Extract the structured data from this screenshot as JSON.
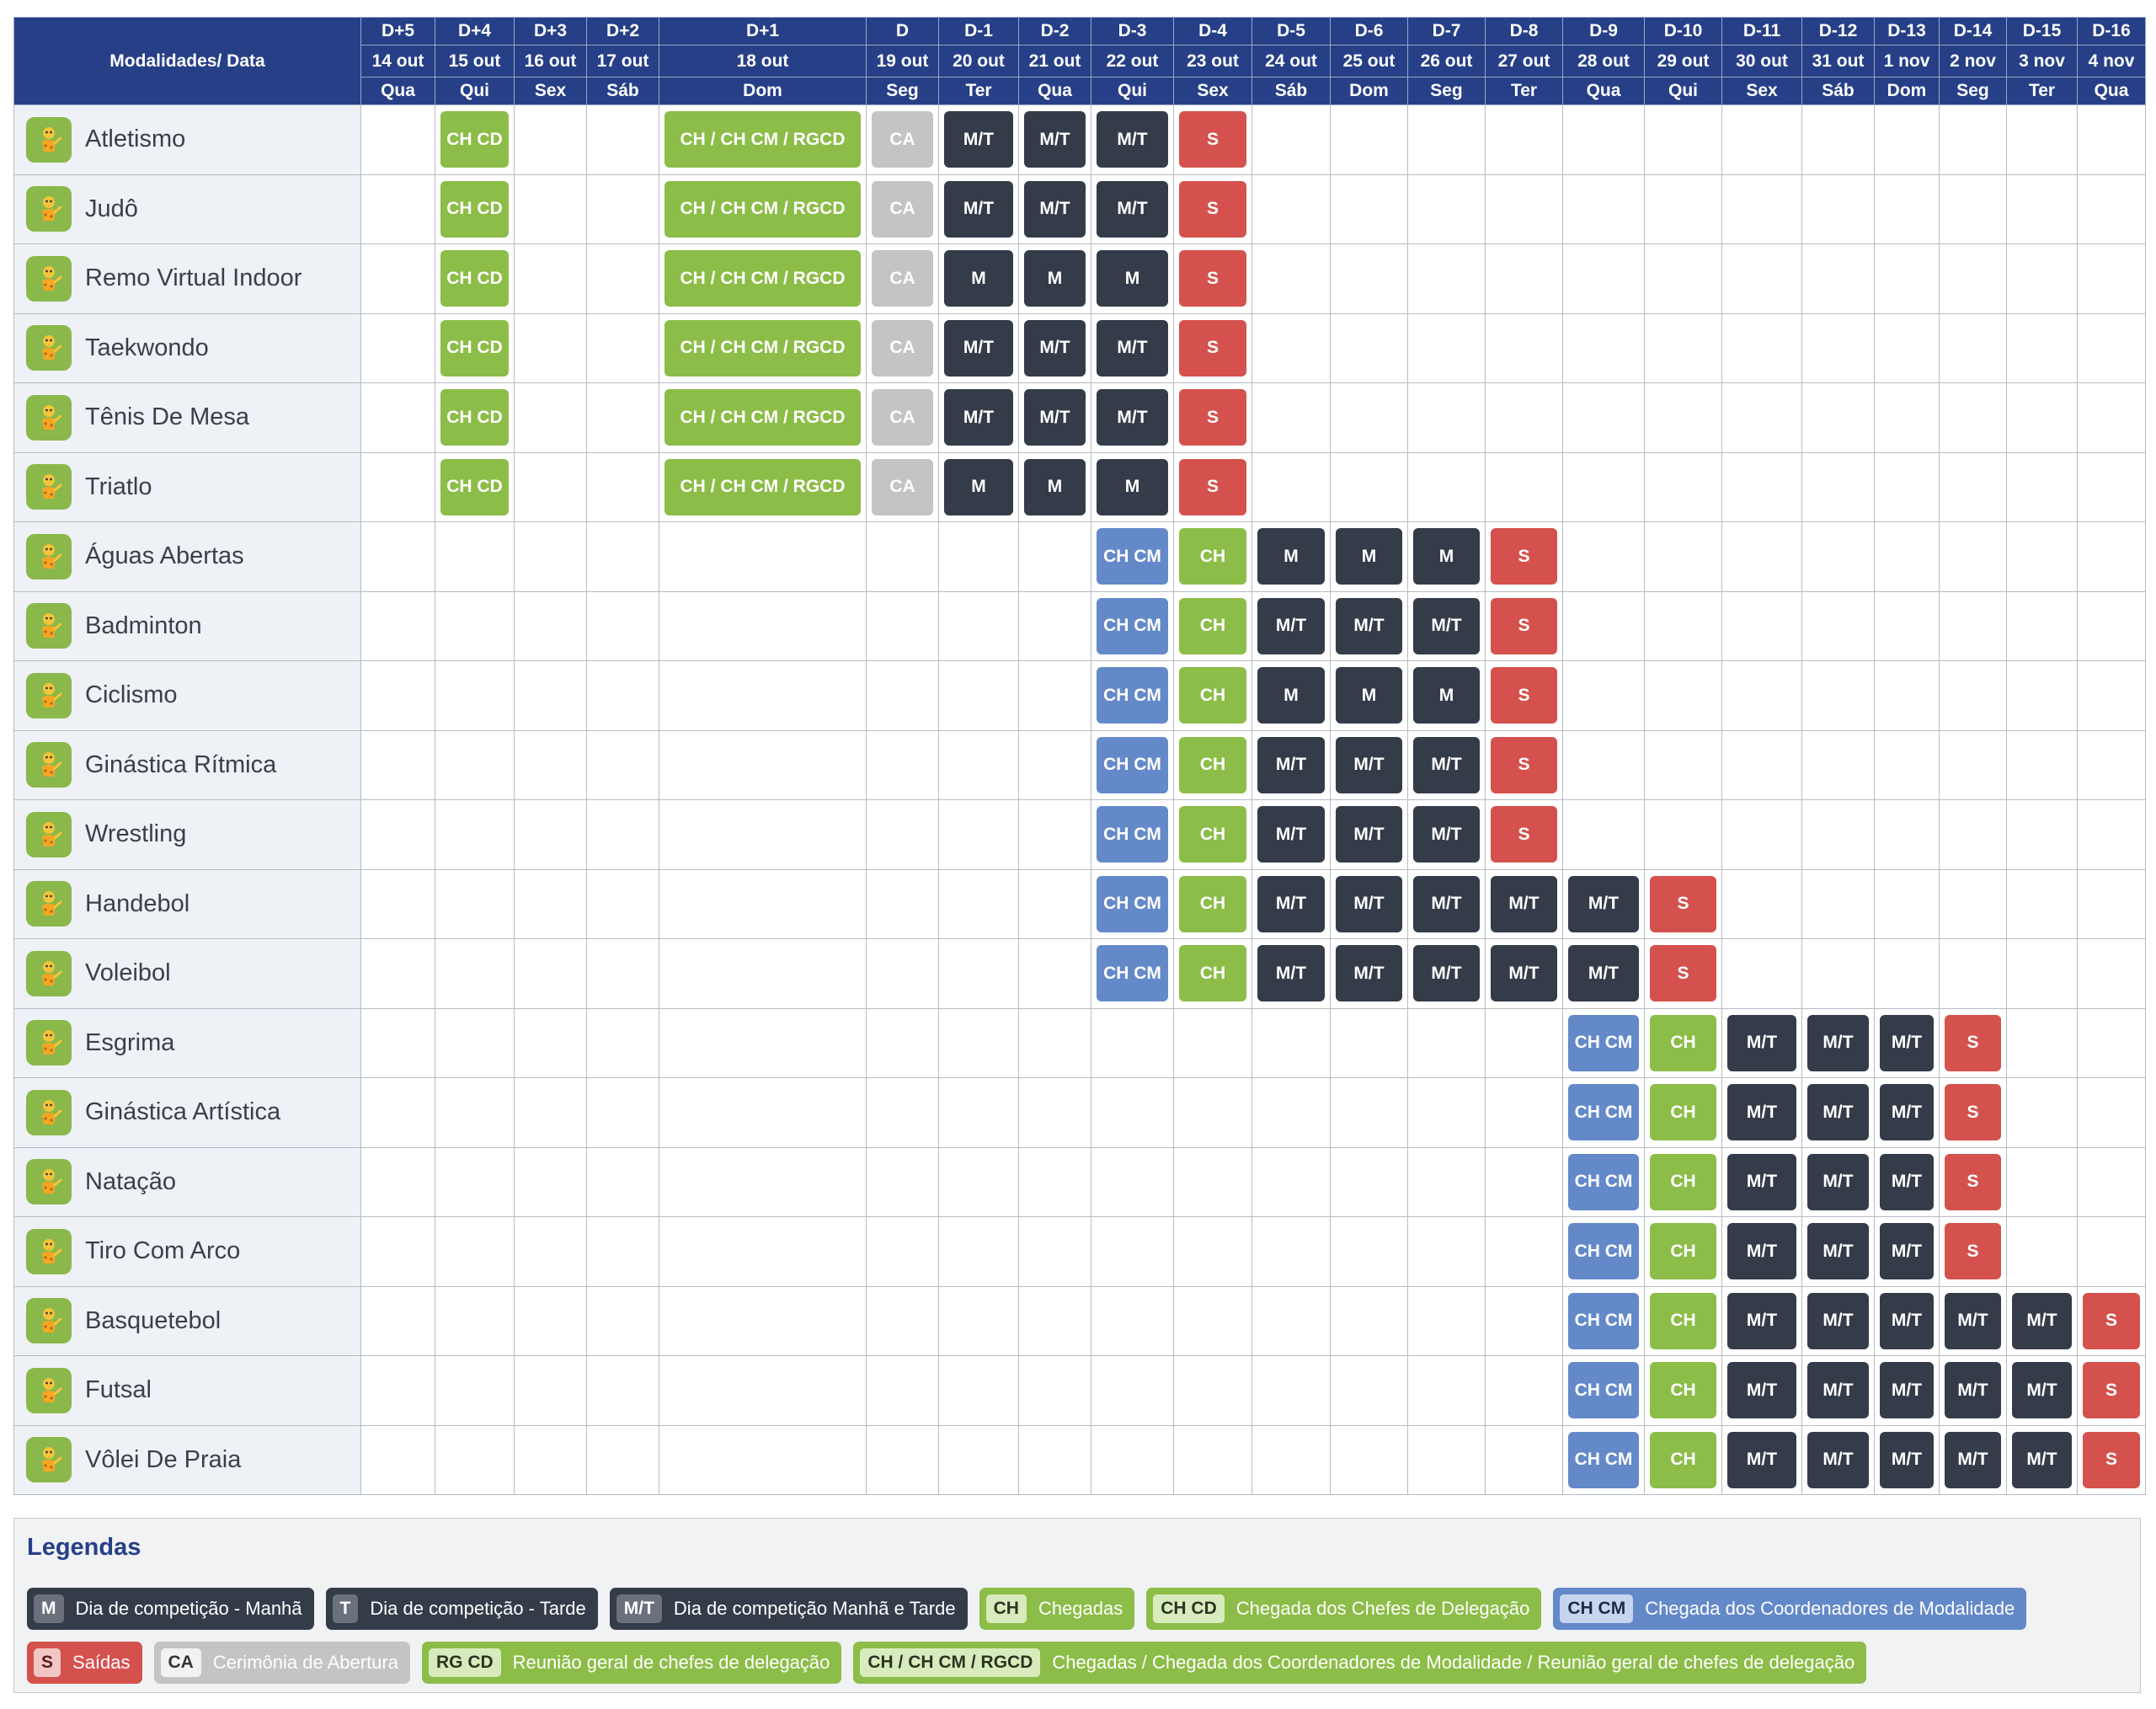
{
  "header": {
    "corner_label": "Modalidades/ Data",
    "columns": [
      {
        "d": "D+5",
        "date": "14 out",
        "wd": "Qua"
      },
      {
        "d": "D+4",
        "date": "15 out",
        "wd": "Qui"
      },
      {
        "d": "D+3",
        "date": "16 out",
        "wd": "Sex"
      },
      {
        "d": "D+2",
        "date": "17 out",
        "wd": "Sáb"
      },
      {
        "d": "D+1",
        "date": "18 out",
        "wd": "Dom"
      },
      {
        "d": "D",
        "date": "19 out",
        "wd": "Seg"
      },
      {
        "d": "D-1",
        "date": "20 out",
        "wd": "Ter"
      },
      {
        "d": "D-2",
        "date": "21 out",
        "wd": "Qua"
      },
      {
        "d": "D-3",
        "date": "22 out",
        "wd": "Qui"
      },
      {
        "d": "D-4",
        "date": "23 out",
        "wd": "Sex"
      },
      {
        "d": "D-5",
        "date": "24 out",
        "wd": "Sáb"
      },
      {
        "d": "D-6",
        "date": "25 out",
        "wd": "Dom"
      },
      {
        "d": "D-7",
        "date": "26 out",
        "wd": "Seg"
      },
      {
        "d": "D-8",
        "date": "27 out",
        "wd": "Ter"
      },
      {
        "d": "D-9",
        "date": "28 out",
        "wd": "Qua"
      },
      {
        "d": "D-10",
        "date": "29 out",
        "wd": "Qui"
      },
      {
        "d": "D-11",
        "date": "30 out",
        "wd": "Sex"
      },
      {
        "d": "D-12",
        "date": "31 out",
        "wd": "Sáb"
      },
      {
        "d": "D-13",
        "date": "1 nov",
        "wd": "Dom"
      },
      {
        "d": "D-14",
        "date": "2 nov",
        "wd": "Seg"
      },
      {
        "d": "D-15",
        "date": "3 nov",
        "wd": "Ter"
      },
      {
        "d": "D-16",
        "date": "4 nov",
        "wd": "Qua"
      }
    ]
  },
  "colors": {
    "header_bg": "#263f87",
    "green": "#8cbd48",
    "gray": "#c3c4c6",
    "dark": "#343c4a",
    "red": "#d5514d",
    "blue": "#6389c9"
  },
  "sports": [
    {
      "name": "Atletismo",
      "icon": "athletics-mascot-icon",
      "cells": [
        "",
        "CH CD",
        "",
        "",
        "CH / CH CM / RGCD",
        "CA",
        "M/T",
        "M/T",
        "M/T",
        "S",
        "",
        "",
        "",
        "",
        "",
        "",
        "",
        "",
        "",
        "",
        "",
        ""
      ]
    },
    {
      "name": "Judô",
      "icon": "judo-mascot-icon",
      "cells": [
        "",
        "CH CD",
        "",
        "",
        "CH / CH CM / RGCD",
        "CA",
        "M/T",
        "M/T",
        "M/T",
        "S",
        "",
        "",
        "",
        "",
        "",
        "",
        "",
        "",
        "",
        "",
        "",
        ""
      ]
    },
    {
      "name": "Remo Virtual Indoor",
      "icon": "rowing-mascot-icon",
      "cells": [
        "",
        "CH CD",
        "",
        "",
        "CH / CH CM / RGCD",
        "CA",
        "M",
        "M",
        "M",
        "S",
        "",
        "",
        "",
        "",
        "",
        "",
        "",
        "",
        "",
        "",
        "",
        ""
      ]
    },
    {
      "name": "Taekwondo",
      "icon": "taekwondo-mascot-icon",
      "cells": [
        "",
        "CH CD",
        "",
        "",
        "CH / CH CM / RGCD",
        "CA",
        "M/T",
        "M/T",
        "M/T",
        "S",
        "",
        "",
        "",
        "",
        "",
        "",
        "",
        "",
        "",
        "",
        "",
        ""
      ]
    },
    {
      "name": "Tênis De Mesa",
      "icon": "table-tennis-mascot-icon",
      "cells": [
        "",
        "CH CD",
        "",
        "",
        "CH / CH CM / RGCD",
        "CA",
        "M/T",
        "M/T",
        "M/T",
        "S",
        "",
        "",
        "",
        "",
        "",
        "",
        "",
        "",
        "",
        "",
        "",
        ""
      ]
    },
    {
      "name": "Triatlo",
      "icon": "triathlon-mascot-icon",
      "cells": [
        "",
        "CH CD",
        "",
        "",
        "CH / CH CM / RGCD",
        "CA",
        "M",
        "M",
        "M",
        "S",
        "",
        "",
        "",
        "",
        "",
        "",
        "",
        "",
        "",
        "",
        "",
        ""
      ]
    },
    {
      "name": "Águas Abertas",
      "icon": "open-water-mascot-icon",
      "cells": [
        "",
        "",
        "",
        "",
        "",
        "",
        "",
        "",
        "CH CM",
        "CH",
        "M",
        "M",
        "M",
        "S",
        "",
        "",
        "",
        "",
        "",
        "",
        "",
        ""
      ]
    },
    {
      "name": "Badminton",
      "icon": "badminton-mascot-icon",
      "cells": [
        "",
        "",
        "",
        "",
        "",
        "",
        "",
        "",
        "CH CM",
        "CH",
        "M/T",
        "M/T",
        "M/T",
        "S",
        "",
        "",
        "",
        "",
        "",
        "",
        "",
        ""
      ]
    },
    {
      "name": "Ciclismo",
      "icon": "cycling-mascot-icon",
      "cells": [
        "",
        "",
        "",
        "",
        "",
        "",
        "",
        "",
        "CH CM",
        "CH",
        "M",
        "M",
        "M",
        "S",
        "",
        "",
        "",
        "",
        "",
        "",
        "",
        ""
      ]
    },
    {
      "name": "Ginástica Rítmica",
      "icon": "rhythmic-gymnastics-mascot-icon",
      "cells": [
        "",
        "",
        "",
        "",
        "",
        "",
        "",
        "",
        "CH CM",
        "CH",
        "M/T",
        "M/T",
        "M/T",
        "S",
        "",
        "",
        "",
        "",
        "",
        "",
        "",
        ""
      ]
    },
    {
      "name": "Wrestling",
      "icon": "wrestling-mascot-icon",
      "cells": [
        "",
        "",
        "",
        "",
        "",
        "",
        "",
        "",
        "CH CM",
        "CH",
        "M/T",
        "M/T",
        "M/T",
        "S",
        "",
        "",
        "",
        "",
        "",
        "",
        "",
        ""
      ]
    },
    {
      "name": "Handebol",
      "icon": "handball-mascot-icon",
      "cells": [
        "",
        "",
        "",
        "",
        "",
        "",
        "",
        "",
        "CH CM",
        "CH",
        "M/T",
        "M/T",
        "M/T",
        "M/T",
        "M/T",
        "S",
        "",
        "",
        "",
        "",
        "",
        ""
      ]
    },
    {
      "name": "Voleibol",
      "icon": "volleyball-mascot-icon",
      "cells": [
        "",
        "",
        "",
        "",
        "",
        "",
        "",
        "",
        "CH CM",
        "CH",
        "M/T",
        "M/T",
        "M/T",
        "M/T",
        "M/T",
        "S",
        "",
        "",
        "",
        "",
        "",
        ""
      ]
    },
    {
      "name": "Esgrima",
      "icon": "fencing-mascot-icon",
      "cells": [
        "",
        "",
        "",
        "",
        "",
        "",
        "",
        "",
        "",
        "",
        "",
        "",
        "",
        "",
        "CH CM",
        "CH",
        "M/T",
        "M/T",
        "M/T",
        "S",
        "",
        ""
      ]
    },
    {
      "name": "Ginástica Artística",
      "icon": "artistic-gymnastics-mascot-icon",
      "cells": [
        "",
        "",
        "",
        "",
        "",
        "",
        "",
        "",
        "",
        "",
        "",
        "",
        "",
        "",
        "CH CM",
        "CH",
        "M/T",
        "M/T",
        "M/T",
        "S",
        "",
        ""
      ]
    },
    {
      "name": "Natação",
      "icon": "swimming-mascot-icon",
      "cells": [
        "",
        "",
        "",
        "",
        "",
        "",
        "",
        "",
        "",
        "",
        "",
        "",
        "",
        "",
        "CH CM",
        "CH",
        "M/T",
        "M/T",
        "M/T",
        "S",
        "",
        ""
      ]
    },
    {
      "name": "Tiro Com Arco",
      "icon": "archery-mascot-icon",
      "cells": [
        "",
        "",
        "",
        "",
        "",
        "",
        "",
        "",
        "",
        "",
        "",
        "",
        "",
        "",
        "CH CM",
        "CH",
        "M/T",
        "M/T",
        "M/T",
        "S",
        "",
        ""
      ]
    },
    {
      "name": "Basquetebol",
      "icon": "basketball-mascot-icon",
      "cells": [
        "",
        "",
        "",
        "",
        "",
        "",
        "",
        "",
        "",
        "",
        "",
        "",
        "",
        "",
        "CH CM",
        "CH",
        "M/T",
        "M/T",
        "M/T",
        "M/T",
        "M/T",
        "S"
      ]
    },
    {
      "name": "Futsal",
      "icon": "futsal-mascot-icon",
      "cells": [
        "",
        "",
        "",
        "",
        "",
        "",
        "",
        "",
        "",
        "",
        "",
        "",
        "",
        "",
        "CH CM",
        "CH",
        "M/T",
        "M/T",
        "M/T",
        "M/T",
        "M/T",
        "S"
      ]
    },
    {
      "name": "Vôlei De Praia",
      "icon": "beach-volleyball-mascot-icon",
      "cells": [
        "",
        "",
        "",
        "",
        "",
        "",
        "",
        "",
        "",
        "",
        "",
        "",
        "",
        "",
        "CH CM",
        "CH",
        "M/T",
        "M/T",
        "M/T",
        "M/T",
        "M/T",
        "S"
      ]
    }
  ],
  "legend": {
    "title": "Legendas",
    "items": [
      {
        "code": "M",
        "label": "Dia de competição - Manhã",
        "style": "dark"
      },
      {
        "code": "T",
        "label": "Dia de competição - Tarde",
        "style": "dark"
      },
      {
        "code": "M/T",
        "label": "Dia de competição Manhã e Tarde",
        "style": "dark"
      },
      {
        "code": "CH",
        "label": "Chegadas",
        "style": "green"
      },
      {
        "code": "CH CD",
        "label": "Chegada dos Chefes de Delegação",
        "style": "green"
      },
      {
        "code": "CH CM",
        "label": "Chegada dos Coordenadores de Modalidade",
        "style": "blue"
      },
      {
        "code": "S",
        "label": "Saídas",
        "style": "red"
      },
      {
        "code": "CA",
        "label": "Cerimônia de Abertura",
        "style": "gray"
      },
      {
        "code": "RG CD",
        "label": "Reunião geral de chefes de delegação",
        "style": "green"
      },
      {
        "code": "CH / CH CM / RGCD",
        "label": "Chegadas / Chegada dos Coordenadores de Modalidade / Reunião geral de chefes de delegação",
        "style": "green"
      }
    ]
  }
}
